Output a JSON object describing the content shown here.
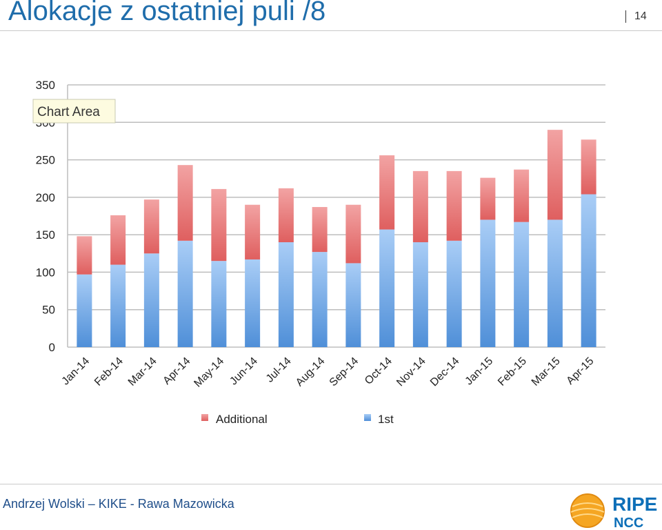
{
  "slide": {
    "title": "Alokacje z ostatniej puli /8",
    "page_number": "14",
    "footer": "Andrzej Wolski – KIKE - Rawa Mazowicka"
  },
  "logo": {
    "line1": "RIPE",
    "line2": "NCC"
  },
  "tooltip": "Chart Area",
  "colors": {
    "title": "#1f6dab",
    "first": "#6fa8e8",
    "additional": "#e87a7a",
    "logo": "#0d6fb8",
    "logo_sun": "#f5a623"
  },
  "chart_data": {
    "type": "bar",
    "stacked": true,
    "categories": [
      "Jan-14",
      "Feb-14",
      "Mar-14",
      "Apr-14",
      "May-14",
      "Jun-14",
      "Jul-14",
      "Aug-14",
      "Sep-14",
      "Oct-14",
      "Nov-14",
      "Dec-14",
      "Jan-15",
      "Feb-15",
      "Mar-15",
      "Apr-15"
    ],
    "series": [
      {
        "name": "1st",
        "values": [
          97,
          110,
          125,
          142,
          115,
          117,
          140,
          127,
          112,
          157,
          140,
          142,
          170,
          167,
          170,
          204
        ]
      },
      {
        "name": "Additional",
        "values": [
          51,
          66,
          72,
          101,
          96,
          73,
          72,
          60,
          78,
          99,
          95,
          93,
          56,
          70,
          120,
          73
        ]
      }
    ],
    "yticks": [
      0,
      50,
      100,
      150,
      200,
      250,
      300,
      350
    ],
    "ylim": [
      0,
      350
    ],
    "grid": true,
    "legend": "bottom"
  }
}
